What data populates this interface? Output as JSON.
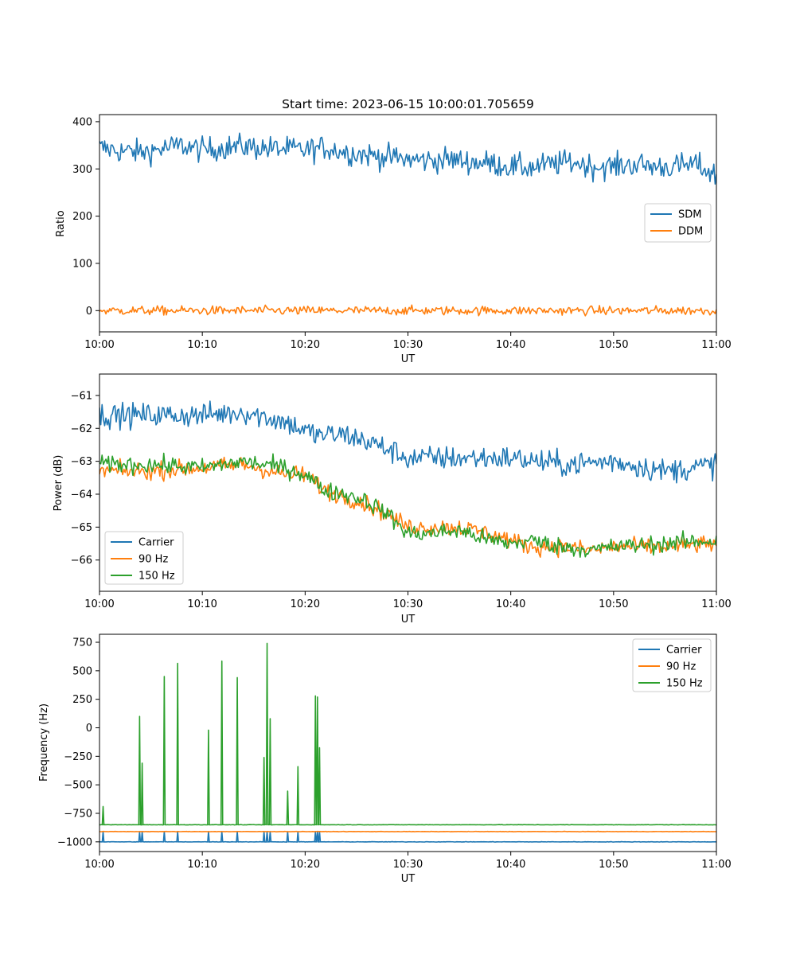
{
  "chart_data": [
    {
      "type": "line",
      "title": "Start time: 2023-06-15 10:00:01.705659",
      "xlabel": "UT",
      "ylabel": "Ratio",
      "xticks": [
        "10:00",
        "10:10",
        "10:20",
        "10:30",
        "10:40",
        "10:50",
        "11:00"
      ],
      "xlim_minutes": [
        0,
        60
      ],
      "yticks": [
        0,
        100,
        200,
        300,
        400
      ],
      "ylim": [
        -45,
        415
      ],
      "legend_position": "center-right",
      "series": [
        {
          "name": "SDM",
          "color": "#1f77b4",
          "x": [
            0,
            2,
            4,
            6,
            8,
            10,
            12,
            14,
            16,
            18,
            20,
            22,
            24,
            26,
            28,
            30,
            32,
            34,
            36,
            38,
            40,
            42,
            44,
            46,
            48,
            50,
            52,
            54,
            56,
            58,
            60
          ],
          "y": [
            345,
            338,
            335,
            342,
            350,
            340,
            345,
            348,
            344,
            342,
            340,
            345,
            335,
            330,
            325,
            320,
            318,
            320,
            315,
            312,
            305,
            303,
            310,
            315,
            305,
            305,
            310,
            305,
            305,
            310,
            285
          ],
          "noise": 25
        },
        {
          "name": "DDM",
          "color": "#ff7f0e",
          "x": [
            0,
            10,
            20,
            30,
            40,
            50,
            60
          ],
          "y": [
            0,
            0,
            0,
            0,
            0,
            0,
            0
          ],
          "noise": 9
        }
      ]
    },
    {
      "type": "line",
      "title": "",
      "xlabel": "UT",
      "ylabel": "Power (dB)",
      "xticks": [
        "10:00",
        "10:10",
        "10:20",
        "10:30",
        "10:40",
        "10:50",
        "11:00"
      ],
      "xlim_minutes": [
        0,
        60
      ],
      "yticks": [
        -66,
        -65,
        -64,
        -63,
        -62,
        -61
      ],
      "ylim": [
        -66.95,
        -60.35
      ],
      "legend_position": "lower-left",
      "series": [
        {
          "name": "Carrier",
          "color": "#1f77b4",
          "x": [
            0,
            5,
            10,
            14,
            18,
            21,
            24,
            27,
            30,
            35,
            40,
            45,
            50,
            55,
            60
          ],
          "y": [
            -61.6,
            -61.6,
            -61.6,
            -61.5,
            -61.8,
            -62.2,
            -62.2,
            -62.5,
            -62.9,
            -62.9,
            -62.9,
            -63.1,
            -63.0,
            -63.3,
            -63.1
          ],
          "noise": 0.35
        },
        {
          "name": "90 Hz",
          "color": "#ff7f0e",
          "x": [
            0,
            5,
            10,
            14,
            18,
            20,
            22,
            24,
            26,
            28,
            30,
            32,
            35,
            38,
            40,
            42,
            45,
            48,
            50,
            55,
            60
          ],
          "y": [
            -63.3,
            -63.3,
            -63.2,
            -63.1,
            -63.4,
            -63.4,
            -63.9,
            -64.1,
            -64.3,
            -64.6,
            -65.0,
            -65.0,
            -65.0,
            -65.2,
            -65.4,
            -65.6,
            -65.6,
            -65.7,
            -65.6,
            -65.6,
            -65.5
          ],
          "noise": 0.25
        },
        {
          "name": "150 Hz",
          "color": "#2ca02c",
          "x": [
            0,
            5,
            10,
            14,
            18,
            20,
            22,
            24,
            26,
            28,
            30,
            32,
            35,
            38,
            40,
            42,
            45,
            48,
            50,
            55,
            60
          ],
          "y": [
            -63.1,
            -63.1,
            -63.2,
            -63.0,
            -63.2,
            -63.4,
            -63.9,
            -64.0,
            -64.2,
            -64.6,
            -65.2,
            -65.2,
            -65.1,
            -65.4,
            -65.5,
            -65.4,
            -65.6,
            -65.7,
            -65.6,
            -65.5,
            -65.4
          ],
          "noise": 0.25
        }
      ]
    },
    {
      "type": "line",
      "title": "",
      "xlabel": "UT",
      "ylabel": "Frequency (Hz)",
      "xticks": [
        "10:00",
        "10:10",
        "10:20",
        "10:30",
        "10:40",
        "10:50",
        "11:00"
      ],
      "xlim_minutes": [
        0,
        60
      ],
      "yticks": [
        -1000,
        -750,
        -500,
        -250,
        0,
        250,
        500,
        750
      ],
      "ylim": [
        -1085,
        820
      ],
      "legend_position": "upper-right",
      "series": [
        {
          "name": "Carrier",
          "color": "#1f77b4",
          "baseline": -1000
        },
        {
          "name": "90 Hz",
          "color": "#ff7f0e",
          "baseline": -910
        },
        {
          "name": "150 Hz",
          "color": "#2ca02c",
          "baseline": -850
        }
      ],
      "spikes_minutes": [
        0.35,
        3.9,
        4.15,
        6.3,
        7.6,
        10.6,
        11.9,
        13.4,
        16.0,
        16.3,
        16.6,
        18.3,
        19.3,
        21.0,
        21.2,
        21.4
      ],
      "spike_peaks_hz": [
        -690,
        100,
        -310,
        450,
        565,
        -20,
        585,
        440,
        -260,
        740,
        80,
        -555,
        -340,
        280,
        270,
        -175
      ]
    }
  ]
}
